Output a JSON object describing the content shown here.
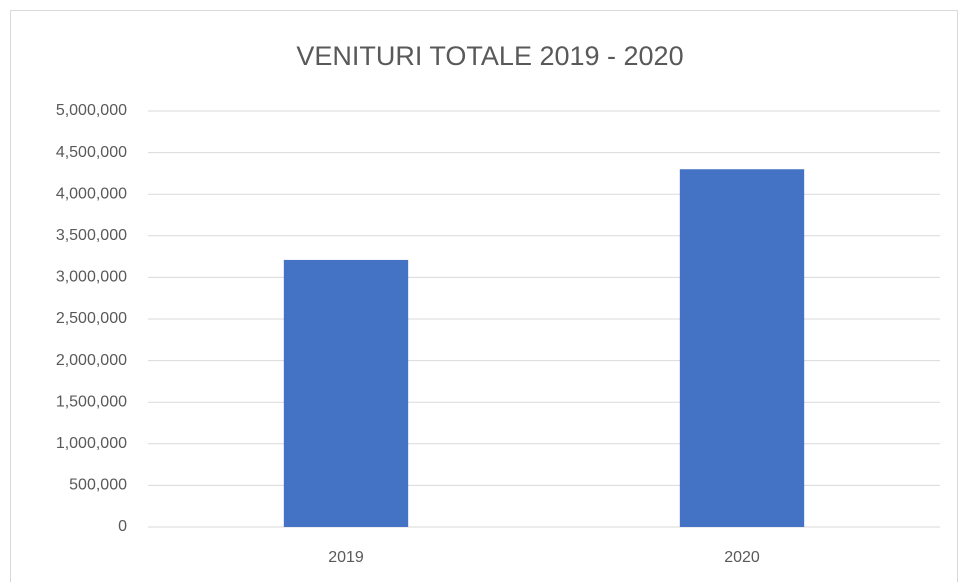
{
  "chart_data": {
    "type": "bar",
    "title": "VENITURI TOTALE 2019 - 2020",
    "categories": [
      "2019",
      "2020"
    ],
    "values": [
      3210000,
      4300000
    ],
    "color": "#4472c4",
    "ylim": [
      0,
      5000000
    ],
    "yticks": [
      0,
      {
        "value": 500000,
        "label": "500,000"
      },
      {
        "value": 1000000,
        "label": "1,000,000"
      },
      {
        "value": 1500000,
        "label": "1,500,000"
      },
      {
        "value": 2000000,
        "label": "2,000,000"
      },
      {
        "value": 2500000,
        "label": "2,500,000"
      },
      {
        "value": 3000000,
        "label": "3,000,000"
      },
      {
        "value": 3500000,
        "label": "3,500,000"
      },
      {
        "value": 4000000,
        "label": "4,000,000"
      },
      {
        "value": 4500000,
        "label": "4,500,000"
      },
      {
        "value": 5000000,
        "label": "5,000,000"
      }
    ],
    "grid": true
  }
}
